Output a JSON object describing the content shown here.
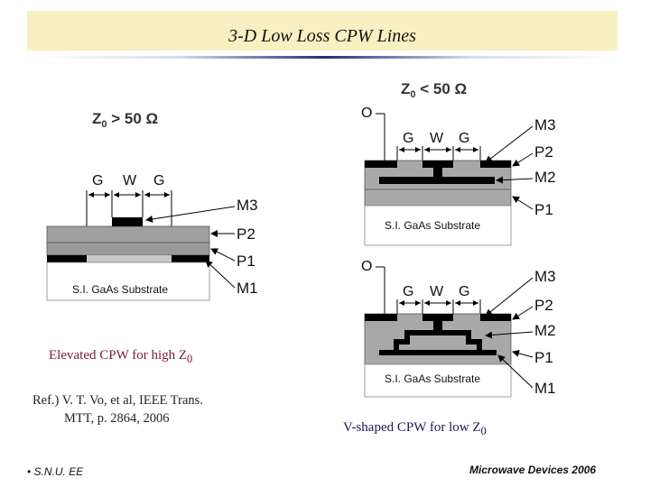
{
  "header": {
    "title": "3-D Low Loss CPW Lines"
  },
  "left_figure": {
    "impedance": "Z",
    "impedance_sub": "0",
    "impedance_rest": " > 50 Ω",
    "dims": [
      "G",
      "W",
      "G"
    ],
    "layers": [
      "M3",
      "P2",
      "P1",
      "M1"
    ],
    "substrate": "S.I. GaAs Substrate"
  },
  "right_figure": {
    "impedance": "Z",
    "impedance_sub": "0",
    "impedance_rest": " < 50 Ω",
    "top": {
      "o": "O",
      "dims": [
        "G",
        "W",
        "G"
      ],
      "layers": [
        "M3",
        "P2",
        "M2",
        "P1"
      ],
      "substrate": "S.I. GaAs Substrate"
    },
    "bottom": {
      "o": "O",
      "dims": [
        "G",
        "W",
        "G"
      ],
      "layers": [
        "M3",
        "P2",
        "M2",
        "P1",
        "M1"
      ],
      "substrate": "S.I. GaAs Substrate"
    }
  },
  "captions": {
    "left": "Elevated CPW for high Z",
    "left_sub": "0",
    "right": "V-shaped CPW for low Z",
    "right_sub": "0"
  },
  "reference": {
    "line1": "Ref.) V. T. Vo, et al, IEEE Trans.",
    "line2": "MTT, p. 2864, 2006"
  },
  "footer": {
    "left": "S.N.U. EE",
    "right": "Microwave Devices 2006"
  }
}
